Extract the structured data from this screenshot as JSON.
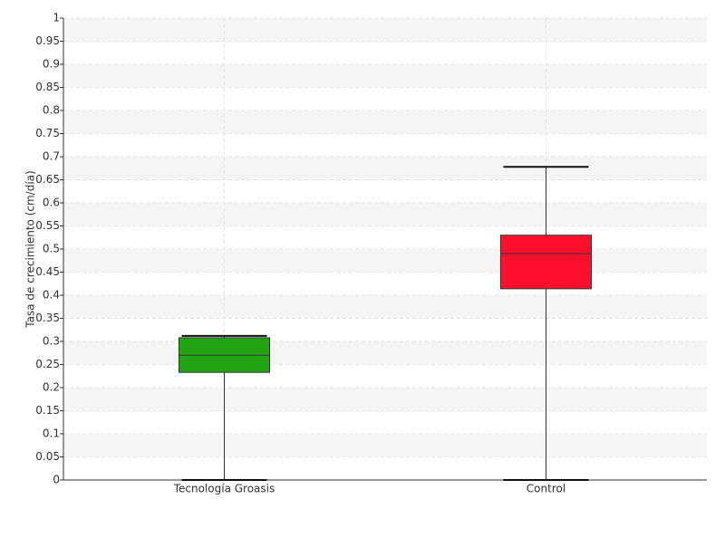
{
  "chart_data": {
    "type": "box",
    "y_label": "Tasa de crecimiento (cm/día)",
    "categories": [
      "Tecnología Groasis",
      "Control"
    ],
    "boxes": [
      {
        "min": 0,
        "q1": 0.233,
        "median": 0.27,
        "q3": 0.308,
        "max": 0.312,
        "color": "#22a311"
      },
      {
        "min": 0,
        "q1": 0.414,
        "median": 0.49,
        "q3": 0.53,
        "max": 0.678,
        "color": "#ff0f2b"
      }
    ],
    "ylim": [
      0,
      1
    ],
    "yticks": [
      0,
      0.05,
      0.1,
      0.15,
      0.2,
      0.25,
      0.3,
      0.35,
      0.4,
      0.45,
      0.5,
      0.55,
      0.6,
      0.65,
      0.7,
      0.75,
      0.8,
      0.85,
      0.9,
      0.95,
      1
    ],
    "grid": true
  }
}
